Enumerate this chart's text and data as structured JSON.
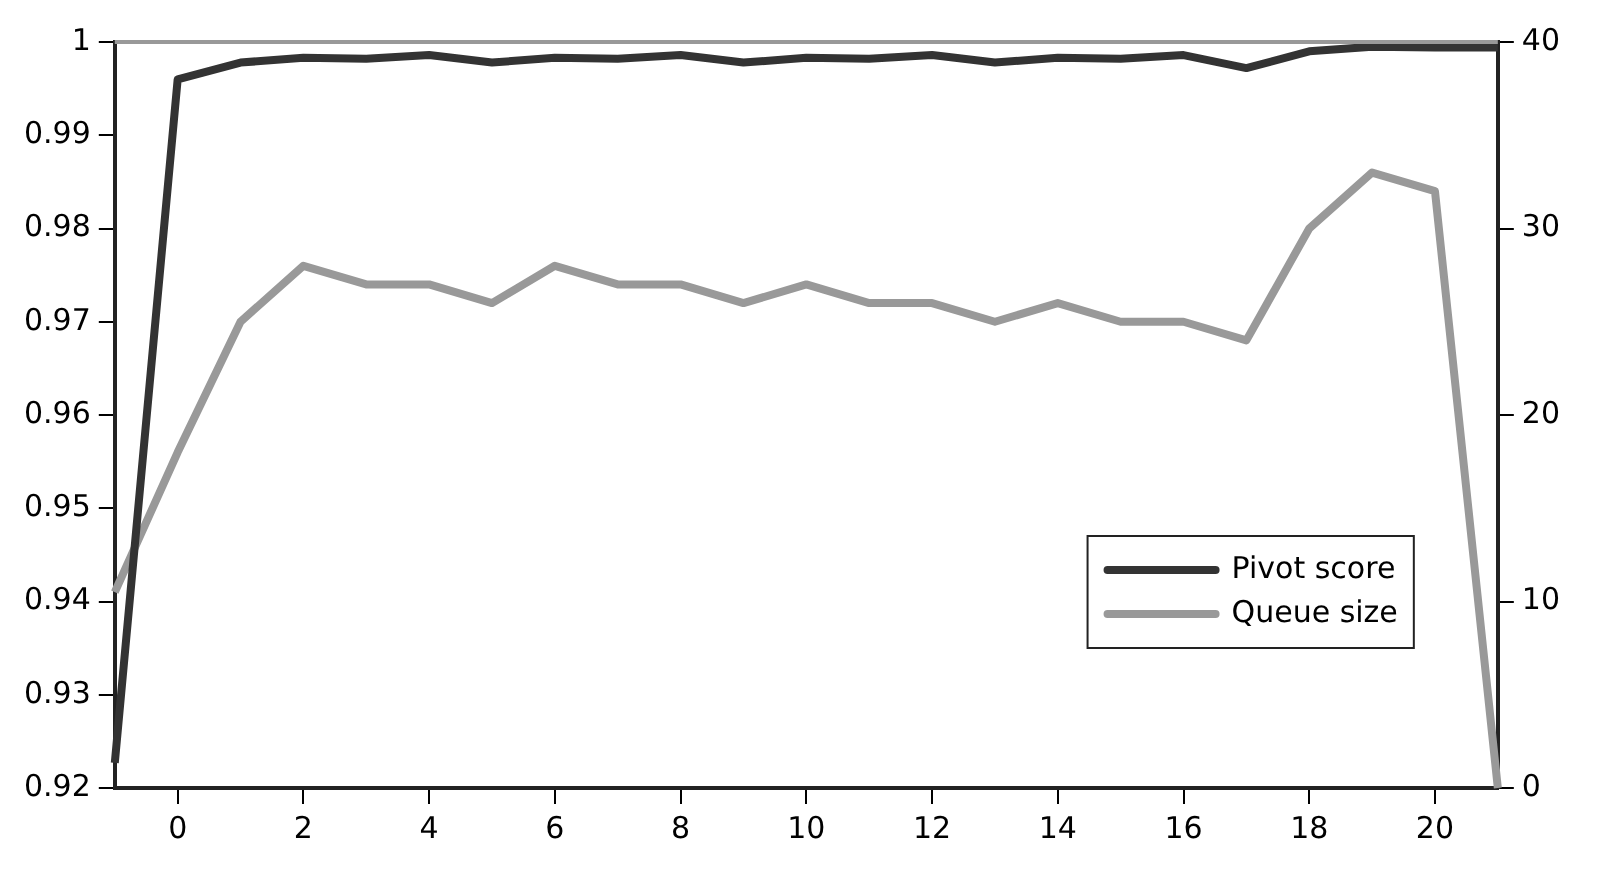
{
  "chart_data": {
    "type": "line",
    "x": [
      -1,
      0,
      1,
      2,
      3,
      4,
      5,
      6,
      7,
      8,
      9,
      10,
      11,
      12,
      13,
      14,
      15,
      16,
      17,
      18,
      19,
      20,
      21
    ],
    "series": [
      {
        "name": "Pivot score",
        "color": "#333333",
        "values": [
          0.9227,
          0.996,
          0.9978,
          0.9983,
          0.9982,
          0.9986,
          0.9978,
          0.9983,
          0.9982,
          0.9986,
          0.9978,
          0.9983,
          0.9982,
          0.9986,
          0.9978,
          0.9983,
          0.9982,
          0.9986,
          0.9972,
          0.999,
          0.9995,
          0.9994,
          0.9994
        ]
      },
      {
        "name": "Queue size",
        "color": "#999999",
        "axis": "y2",
        "values": [
          10.5,
          18,
          25,
          28,
          27,
          27,
          26,
          28,
          27,
          27,
          26,
          27,
          26,
          26,
          25,
          26,
          25,
          25,
          24,
          30,
          33,
          32,
          0
        ]
      }
    ],
    "xlim": [
      -1,
      21
    ],
    "xticks": [
      0,
      2,
      4,
      6,
      8,
      10,
      12,
      14,
      16,
      18,
      20
    ],
    "ylim": [
      0.92,
      1
    ],
    "yticks": [
      0.92,
      0.93,
      0.94,
      0.95,
      0.96,
      0.97,
      0.98,
      0.99,
      1
    ],
    "y2lim": [
      0,
      40
    ],
    "y2ticks": [
      0,
      10,
      20,
      30,
      40
    ],
    "grid": false,
    "legend": "bottom right",
    "marker": "none",
    "line_style": "solid"
  }
}
